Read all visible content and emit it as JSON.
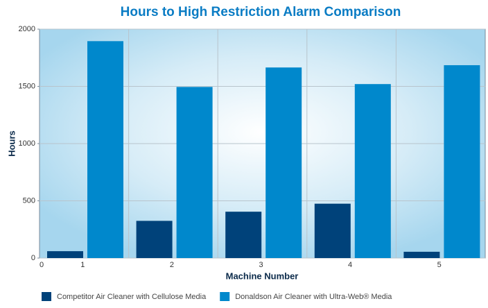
{
  "chart_data": {
    "type": "bar",
    "title": "Hours to High Restriction Alarm Comparison",
    "xlabel": "Machine Number",
    "ylabel": "Hours",
    "x_origin_label": "0",
    "categories": [
      "1",
      "2",
      "3",
      "4",
      "5"
    ],
    "series": [
      {
        "name": "Competitor Air Cleaner with Cellulose Media",
        "color": "#00427a",
        "values": [
          60,
          325,
          405,
          475,
          55
        ]
      },
      {
        "name": "Donaldson Air Cleaner with Ultra-Web® Media",
        "color": "#0088cc",
        "values": [
          1895,
          1495,
          1665,
          1520,
          1685
        ]
      }
    ],
    "ylim": [
      0,
      2000
    ],
    "yticks": [
      0,
      500,
      1000,
      1500,
      2000
    ],
    "grid": true
  }
}
